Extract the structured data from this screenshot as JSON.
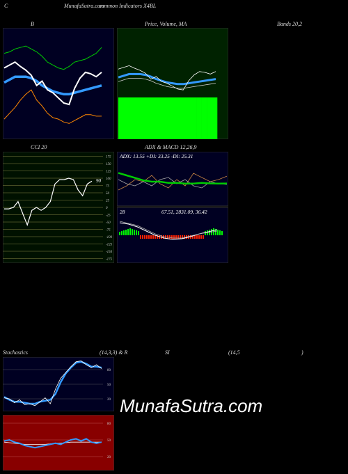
{
  "header": {
    "left_letter": "C",
    "site_title": "MunafaSutra.com",
    "subtitle": "common Indicators X4BL"
  },
  "labels": {
    "bb_title": "B",
    "price_title": "Price, Volume, MA",
    "bands_title": "Bands 20,2",
    "cci_title": "CCI 20",
    "adx_title": "ADX & MACD 12,26,9",
    "adx_values": "ADX: 13.55 +DI: 33.25 -DI: 25.31",
    "macd_label": "28",
    "macd_values": "67.51, 2831.09, 36.42",
    "cci_value": "90",
    "stoch_title": "Stochastics",
    "stoch_params": "(14,3,3) & R",
    "rsi_title": "SI",
    "rsi_params": "(14,5",
    "rsi_close": ")"
  },
  "watermark": "MunafaSutra.com",
  "colors": {
    "panel_navy": "#000022",
    "panel_green": "#002200",
    "volume_green": "#00ff00",
    "cci_bg": "#001100",
    "rsi_bg": "#880000",
    "ma_blue": "#3399ff",
    "upper_band": "#00cc00",
    "lower_band": "#ff8800",
    "price_line": "#ffffff"
  },
  "chart_data": [
    {
      "type": "line",
      "title": "B",
      "series": [
        {
          "values": [
            88,
            92,
            96,
            90,
            85,
            78,
            64,
            70,
            58,
            54,
            47,
            40,
            38,
            60,
            74,
            82,
            80,
            76,
            82
          ]
        },
        {
          "values": [
            108,
            110,
            114,
            116,
            118,
            114,
            110,
            104,
            96,
            92,
            88,
            86,
            90,
            96,
            98,
            100,
            104,
            108,
            116
          ]
        },
        {
          "values": [
            18,
            26,
            34,
            44,
            52,
            58,
            44,
            36,
            26,
            20,
            18,
            14,
            12,
            16,
            20,
            24,
            24,
            22,
            22
          ]
        },
        {
          "values": [
            68,
            72,
            76,
            76,
            76,
            74,
            70,
            64,
            60,
            56,
            54,
            52,
            52,
            54,
            56,
            58,
            60,
            62,
            64
          ]
        }
      ]
    },
    {
      "type": "line",
      "title": "Price, Volume, MA",
      "series": [
        {
          "values": [
            88,
            92,
            96,
            90,
            85,
            78,
            64,
            70,
            58,
            54,
            47,
            40,
            38,
            60,
            74,
            82,
            80,
            76,
            82
          ]
        },
        {
          "values": [
            68,
            72,
            76,
            76,
            76,
            74,
            70,
            64,
            60,
            56,
            54,
            52,
            52,
            54,
            56,
            58,
            60,
            62,
            64
          ]
        }
      ],
      "volume": [
        60,
        60,
        60,
        60,
        60,
        60,
        60,
        60,
        60,
        60,
        60,
        60,
        60,
        60,
        60,
        60,
        60,
        60,
        60
      ]
    },
    {
      "type": "line",
      "title": "CCI 20",
      "yticks": [
        175,
        150,
        125,
        100,
        75,
        50,
        25,
        0,
        -25,
        -50,
        -75,
        -100,
        -125,
        -150,
        -175
      ],
      "series": [
        {
          "values": [
            -5,
            -5,
            0,
            20,
            -20,
            -60,
            -10,
            0,
            -10,
            0,
            20,
            80,
            95,
            95,
            100,
            95,
            60,
            40,
            80,
            90
          ]
        }
      ]
    },
    {
      "type": "line",
      "title": "ADX & MACD 12,26,9",
      "series": [
        {
          "name": "ADX",
          "values": [
            22,
            20,
            18,
            16,
            15,
            15,
            14,
            14,
            13.5,
            13.5,
            14,
            13.6,
            13.5,
            13.55
          ]
        },
        {
          "name": "+DI",
          "values": [
            20,
            24,
            30,
            28,
            34,
            26,
            22,
            30,
            24,
            36,
            32,
            28,
            30,
            33.25
          ]
        },
        {
          "name": "-DI",
          "values": [
            30,
            26,
            24,
            28,
            24,
            30,
            32,
            26,
            30,
            24,
            22,
            28,
            26,
            25.31
          ]
        }
      ]
    },
    {
      "type": "line",
      "title": "Stochastics (14,3,3)",
      "yticks": [
        80,
        50,
        20
      ],
      "series": [
        {
          "values": [
            22,
            20,
            12,
            18,
            8,
            10,
            6,
            14,
            22,
            10,
            40,
            62,
            74,
            86,
            96,
            98,
            90,
            84,
            90,
            82
          ]
        },
        {
          "values": [
            24,
            18,
            14,
            14,
            12,
            10,
            10,
            14,
            16,
            18,
            30,
            54,
            72,
            84,
            94,
            96,
            92,
            86,
            86,
            84
          ]
        }
      ]
    },
    {
      "type": "line",
      "title": "RSI (14,5)",
      "yticks": [
        80,
        50,
        20
      ],
      "series": [
        {
          "values": [
            48,
            50,
            46,
            44,
            40,
            38,
            36,
            38,
            40,
            42,
            44,
            42,
            46,
            50,
            52,
            48,
            52,
            46,
            44,
            46
          ]
        },
        {
          "values": [
            46,
            45,
            44,
            43,
            42,
            42,
            42,
            42,
            42,
            43,
            44,
            44,
            45,
            46,
            46,
            46,
            46,
            46,
            46,
            46
          ]
        }
      ]
    }
  ]
}
